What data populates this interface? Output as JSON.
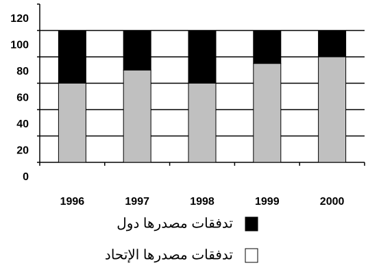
{
  "chart_data": {
    "type": "stacked_bar",
    "categories": [
      "1996",
      "1997",
      "1998",
      "1999",
      "2000"
    ],
    "series": [
      {
        "name": "تدفقات مصدرها الإتحاد",
        "color": "#c0c0c0",
        "values": [
          60,
          70,
          60,
          75,
          80
        ]
      },
      {
        "name": "تدفقات مصدرها دول",
        "color": "#000000",
        "values": [
          40,
          30,
          40,
          25,
          20
        ]
      }
    ],
    "ylim": [
      0,
      120
    ],
    "yticks": [
      0,
      20,
      40,
      60,
      80,
      100,
      120
    ],
    "grid": true
  }
}
